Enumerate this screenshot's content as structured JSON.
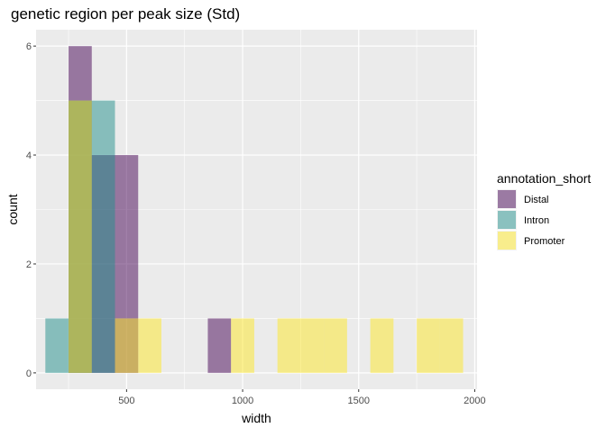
{
  "chart_data": {
    "type": "histogram",
    "title": "genetic region per peak size (Std)",
    "xlabel": "width",
    "ylabel": "count",
    "xlim": [
      110,
      2010
    ],
    "ylim": [
      -0.3,
      6.3
    ],
    "x_ticks": [
      500,
      1000,
      1500,
      2000
    ],
    "y_ticks": [
      0,
      2,
      4,
      6
    ],
    "bin_width": 100,
    "grid": true,
    "legend_title": "annotation_short",
    "legend_position": "right",
    "series": [
      {
        "name": "Distal",
        "color": "#440154",
        "bins": [
          {
            "x0": 250,
            "x1": 350,
            "count": 6
          },
          {
            "x0": 350,
            "x1": 450,
            "count": 4
          },
          {
            "x0": 450,
            "x1": 550,
            "count": 4
          },
          {
            "x0": 850,
            "x1": 950,
            "count": 1
          }
        ]
      },
      {
        "name": "Intron",
        "color": "#21908C",
        "bins": [
          {
            "x0": 150,
            "x1": 250,
            "count": 1
          },
          {
            "x0": 250,
            "x1": 350,
            "count": 5
          },
          {
            "x0": 350,
            "x1": 450,
            "count": 5
          }
        ]
      },
      {
        "name": "Promoter",
        "color": "#FDE725",
        "bins": [
          {
            "x0": 250,
            "x1": 350,
            "count": 5
          },
          {
            "x0": 450,
            "x1": 550,
            "count": 1
          },
          {
            "x0": 550,
            "x1": 650,
            "count": 1
          },
          {
            "x0": 950,
            "x1": 1050,
            "count": 1
          },
          {
            "x0": 1150,
            "x1": 1250,
            "count": 1
          },
          {
            "x0": 1250,
            "x1": 1350,
            "count": 1
          },
          {
            "x0": 1350,
            "x1": 1450,
            "count": 1
          },
          {
            "x0": 1550,
            "x1": 1650,
            "count": 1
          },
          {
            "x0": 1750,
            "x1": 1850,
            "count": 1
          },
          {
            "x0": 1850,
            "x1": 1950,
            "count": 1
          }
        ]
      }
    ],
    "fill_alpha": 0.5
  }
}
